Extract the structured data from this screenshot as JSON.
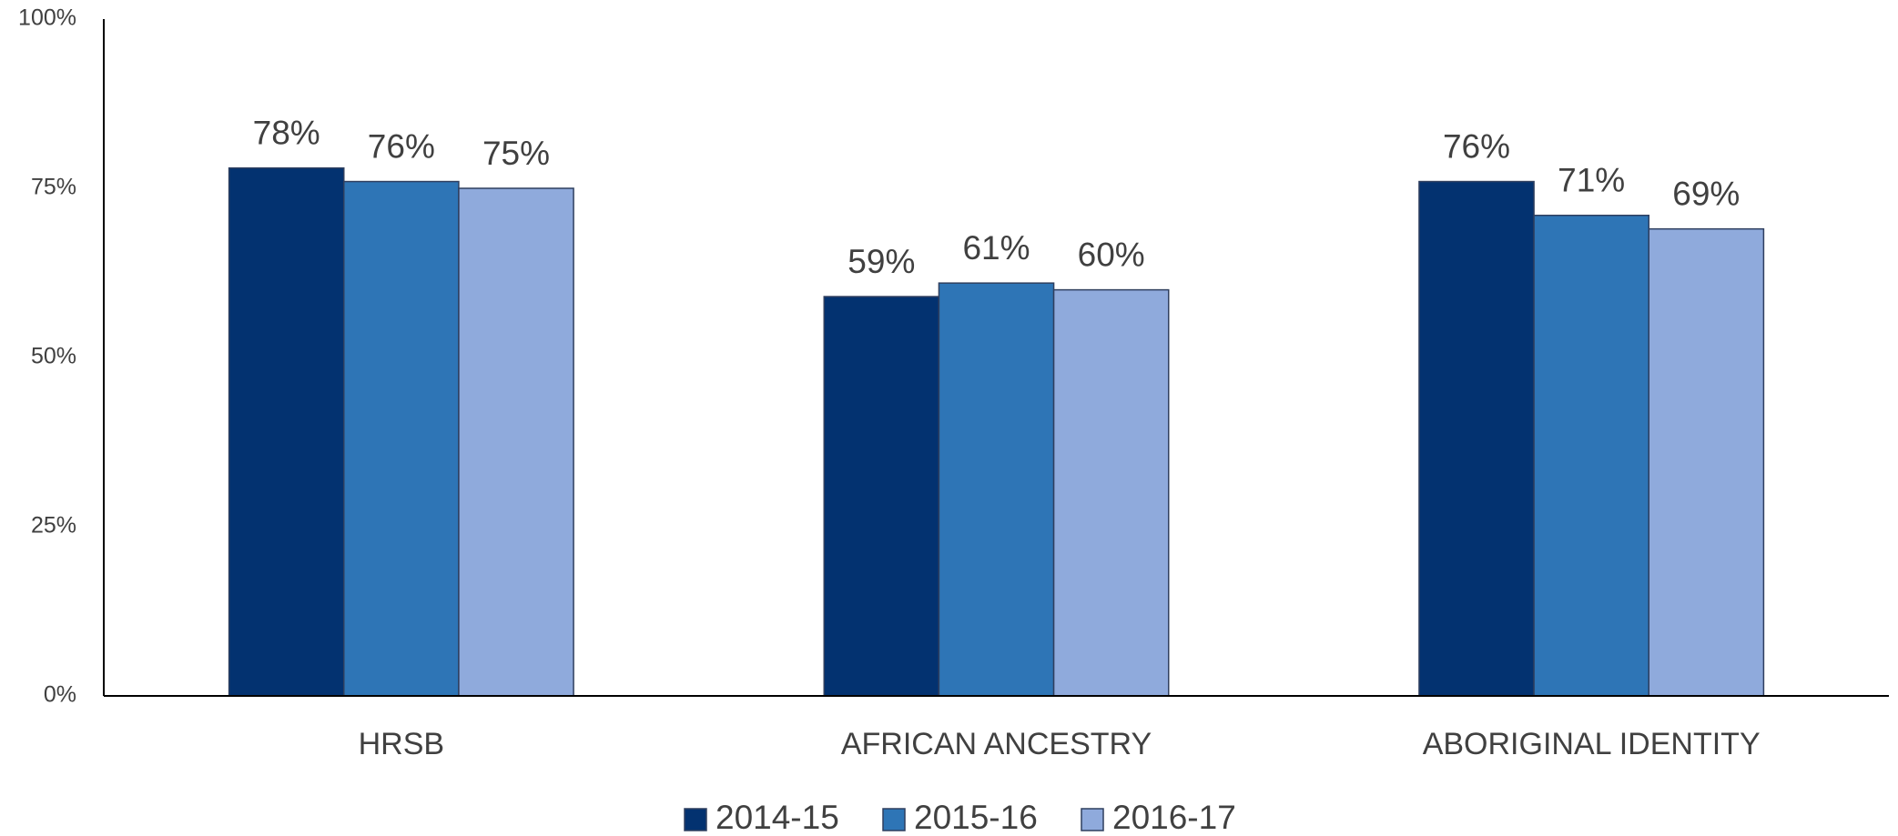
{
  "chart_data": {
    "type": "bar",
    "categories": [
      "HRSB",
      "AFRICAN ANCESTRY",
      "ABORIGINAL IDENTITY"
    ],
    "series": [
      {
        "name": "2014-15",
        "color": "#033270",
        "values": [
          78,
          59,
          76
        ],
        "value_labels": [
          "78%",
          "59%",
          "76%"
        ]
      },
      {
        "name": "2015-16",
        "color": "#2e75b6",
        "values": [
          76,
          61,
          71
        ],
        "value_labels": [
          "76%",
          "61%",
          "71%"
        ]
      },
      {
        "name": "2016-17",
        "color": "#8faadc",
        "values": [
          75,
          60,
          69
        ],
        "value_labels": [
          "75%",
          "60%",
          "69%"
        ]
      }
    ],
    "ylim": [
      0,
      100
    ],
    "yticks": [
      {
        "value": 0,
        "label": "0%"
      },
      {
        "value": 25,
        "label": "25%"
      },
      {
        "value": 50,
        "label": "50%"
      },
      {
        "value": 75,
        "label": "75%"
      },
      {
        "value": 100,
        "label": "100%"
      }
    ],
    "grid": false,
    "legend": "bottom"
  }
}
